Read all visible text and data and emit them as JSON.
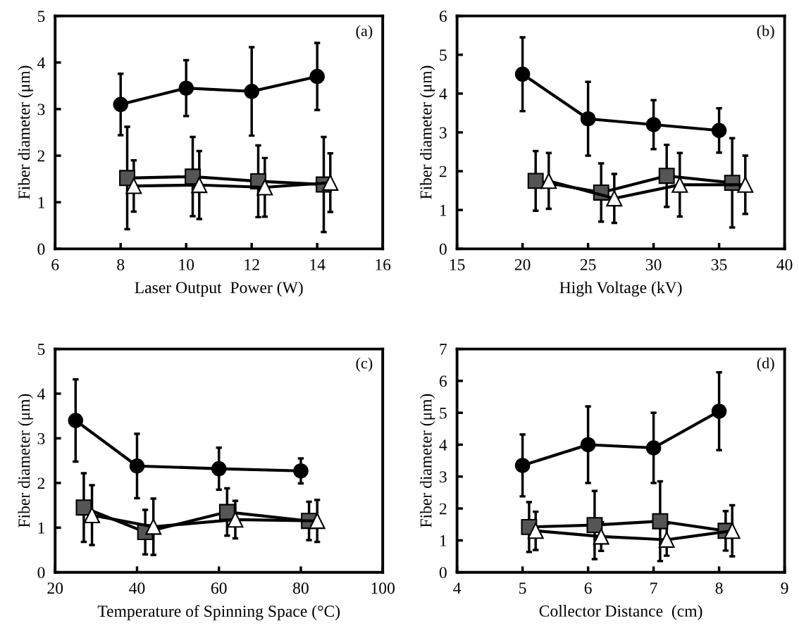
{
  "chart_data": [
    {
      "type": "line",
      "xlabel": "Laser Output  Power (W)",
      "ylabel": "Fiber diameter (μm)",
      "annotations": [
        "(a)"
      ],
      "xlim": [
        6,
        16
      ],
      "xticks": [
        6,
        8,
        10,
        12,
        14,
        16
      ],
      "ylim": [
        0,
        5
      ],
      "yticks": [
        0,
        1,
        2,
        3,
        4,
        5
      ],
      "grid": false,
      "line_style": "solid",
      "series": [
        {
          "marker": "circle",
          "color": "#000000",
          "x": [
            8,
            10,
            12,
            14
          ],
          "values": [
            3.1,
            3.45,
            3.38,
            3.7
          ],
          "errors": [
            0.66,
            0.6,
            0.95,
            0.72
          ]
        },
        {
          "marker": "square",
          "color": "#555555",
          "x": [
            8.2,
            10.2,
            12.2,
            14.2
          ],
          "values": [
            1.52,
            1.55,
            1.45,
            1.38
          ],
          "errors": [
            1.1,
            0.85,
            0.77,
            1.02
          ]
        },
        {
          "marker": "triangle",
          "color": "#ffffff",
          "x": [
            8.4,
            10.4,
            12.4,
            14.4
          ],
          "values": [
            1.35,
            1.37,
            1.32,
            1.42
          ],
          "errors": [
            0.55,
            0.73,
            0.63,
            0.63
          ]
        }
      ]
    },
    {
      "type": "line",
      "xlabel": "High Voltage (kV)",
      "ylabel": "Fiber diameter (μm)",
      "annotations": [
        "(b)"
      ],
      "xlim": [
        15,
        40
      ],
      "xticks": [
        15,
        20,
        25,
        30,
        35,
        40
      ],
      "ylim": [
        0,
        6
      ],
      "yticks": [
        0,
        1,
        2,
        3,
        4,
        5,
        6
      ],
      "grid": false,
      "line_style": "solid",
      "series": [
        {
          "marker": "circle",
          "color": "#000000",
          "x": [
            20,
            25,
            30,
            35
          ],
          "values": [
            4.5,
            3.35,
            3.2,
            3.05
          ],
          "errors": [
            0.95,
            0.95,
            0.63,
            0.57
          ]
        },
        {
          "marker": "square",
          "color": "#555555",
          "x": [
            21,
            26,
            31,
            36
          ],
          "values": [
            1.75,
            1.45,
            1.88,
            1.7
          ],
          "errors": [
            0.77,
            0.75,
            0.8,
            1.15
          ]
        },
        {
          "marker": "triangle",
          "color": "#ffffff",
          "x": [
            22,
            27,
            32,
            37
          ],
          "values": [
            1.75,
            1.3,
            1.65,
            1.65
          ],
          "errors": [
            0.72,
            0.63,
            0.82,
            0.75
          ]
        }
      ]
    },
    {
      "type": "line",
      "xlabel": "Temperature of Spinning Space (°C)",
      "ylabel": "Fiber diameter (μm)",
      "annotations": [
        "(c)"
      ],
      "xlim": [
        20,
        100
      ],
      "xticks": [
        20,
        40,
        60,
        80,
        100
      ],
      "ylim": [
        0,
        5
      ],
      "yticks": [
        0,
        1,
        2,
        3,
        4,
        5
      ],
      "grid": false,
      "line_style": "solid",
      "series": [
        {
          "marker": "circle",
          "color": "#000000",
          "x": [
            25,
            40,
            60,
            80
          ],
          "values": [
            3.4,
            2.38,
            2.32,
            2.27
          ],
          "errors": [
            0.92,
            0.72,
            0.47,
            0.28
          ]
        },
        {
          "marker": "square",
          "color": "#555555",
          "x": [
            27,
            42,
            62,
            82
          ],
          "values": [
            1.45,
            0.9,
            1.35,
            1.15
          ],
          "errors": [
            0.77,
            0.5,
            0.53,
            0.43
          ]
        },
        {
          "marker": "triangle",
          "color": "#ffffff",
          "x": [
            29,
            44,
            64,
            84
          ],
          "values": [
            1.28,
            1.02,
            1.18,
            1.15
          ],
          "errors": [
            0.67,
            0.63,
            0.42,
            0.47
          ]
        }
      ]
    },
    {
      "type": "line",
      "xlabel": "Collector Distance  (cm)",
      "ylabel": "Fiber diameter (μm)",
      "annotations": [
        "(d)"
      ],
      "xlim": [
        4,
        9
      ],
      "xticks": [
        4,
        5,
        6,
        7,
        8,
        9
      ],
      "ylim": [
        0,
        7
      ],
      "yticks": [
        0,
        1,
        2,
        3,
        4,
        5,
        6,
        7
      ],
      "grid": false,
      "line_style": "solid",
      "series": [
        {
          "marker": "circle",
          "color": "#000000",
          "x": [
            5,
            6,
            7,
            8
          ],
          "values": [
            3.35,
            4.0,
            3.9,
            5.05
          ],
          "errors": [
            0.97,
            1.2,
            1.1,
            1.22
          ]
        },
        {
          "marker": "square",
          "color": "#555555",
          "x": [
            5.1,
            6.1,
            7.1,
            8.1
          ],
          "values": [
            1.42,
            1.48,
            1.6,
            1.3
          ],
          "errors": [
            0.78,
            1.07,
            1.25,
            0.62
          ]
        },
        {
          "marker": "triangle",
          "color": "#ffffff",
          "x": [
            5.2,
            6.2,
            7.2,
            8.2
          ],
          "values": [
            1.3,
            1.12,
            1.02,
            1.3
          ],
          "errors": [
            0.6,
            0.45,
            0.5,
            0.8
          ]
        }
      ]
    }
  ]
}
